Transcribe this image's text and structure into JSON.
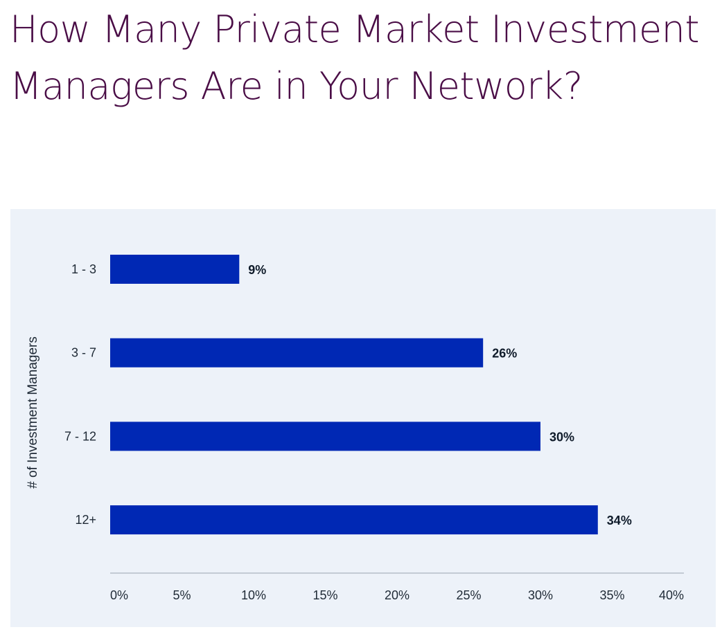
{
  "page": {
    "title": "How Many Private Market Investment Managers Are in Your Network?"
  },
  "chart_data": {
    "type": "bar",
    "orientation": "horizontal",
    "title": "",
    "xlabel": "",
    "ylabel": "# of Investment Managers",
    "categories": [
      "1 - 3",
      "3 - 7",
      "7 - 12",
      "12+"
    ],
    "values": [
      9,
      26,
      30,
      34
    ],
    "value_labels": [
      "9%",
      "26%",
      "30%",
      "34%"
    ],
    "xlim": [
      0,
      40
    ],
    "x_ticks": [
      0,
      5,
      10,
      15,
      20,
      25,
      30,
      35,
      40
    ],
    "x_tick_labels": [
      "0%",
      "5%",
      "10%",
      "15%",
      "20%",
      "25%",
      "30%",
      "35%",
      "40%"
    ],
    "grid": false,
    "legend": "none",
    "colors": {
      "bar": "#0028b4",
      "panel_background": "#edf2f9",
      "title": "#4a0d46",
      "axis_line": "#c3cad4"
    }
  }
}
